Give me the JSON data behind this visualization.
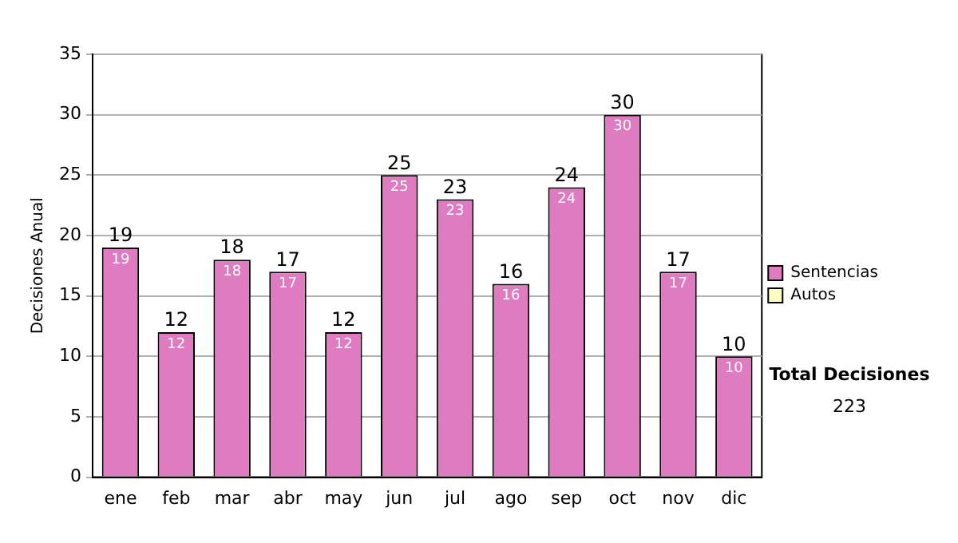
{
  "chart_data": {
    "type": "bar",
    "stacked": true,
    "ylabel": "Decisiones Anual",
    "categories": [
      "ene",
      "feb",
      "mar",
      "abr",
      "may",
      "jun",
      "jul",
      "ago",
      "sep",
      "oct",
      "nov",
      "dic"
    ],
    "series": [
      {
        "name": "Sentencias",
        "color": "#de7bc1",
        "values": [
          19,
          12,
          18,
          17,
          12,
          25,
          23,
          16,
          24,
          30,
          17,
          10
        ],
        "value_labels": [
          "19",
          "12",
          "18",
          "17",
          "12",
          "25",
          "23",
          "16",
          "24",
          "30",
          "17",
          "10"
        ]
      },
      {
        "name": "Autos",
        "color": "#ffffc0",
        "values": [
          0,
          0,
          0,
          0,
          0,
          0,
          0,
          0,
          0,
          0,
          0,
          0
        ]
      }
    ],
    "totals": [
      "19",
      "12",
      "18",
      "17",
      "12",
      "25",
      "23",
      "16",
      "24",
      "30",
      "17",
      "10"
    ],
    "ylim": [
      0,
      35
    ],
    "yticks": [
      0,
      5,
      10,
      15,
      20,
      25,
      30,
      35
    ],
    "grid": "y",
    "legend": "right",
    "annotations": [
      "Total Decisiones",
      "223"
    ]
  }
}
